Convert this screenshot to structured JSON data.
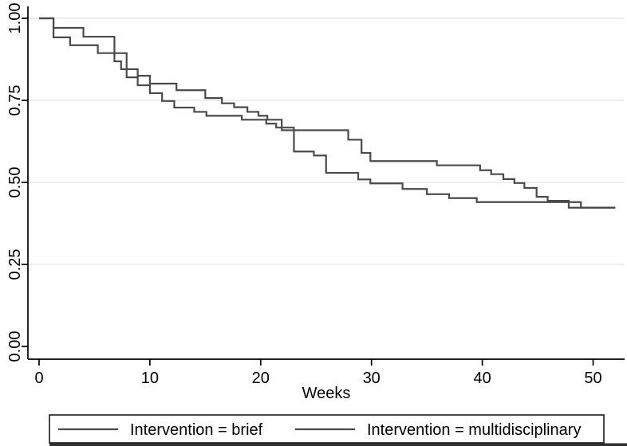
{
  "chart_data": {
    "type": "line",
    "subtype": "kaplan-meier-step-survival",
    "title": "",
    "xlabel": "Weeks",
    "ylabel": "",
    "xlim": [
      0,
      52
    ],
    "xticks": [
      0,
      10,
      20,
      30,
      40,
      50
    ],
    "ylim": [
      0.0,
      1.0
    ],
    "yticks": [
      "0.00",
      "0.25",
      "0.50",
      "0.75",
      "1.00"
    ],
    "ytick_values": [
      0.0,
      0.25,
      0.5,
      0.75,
      1.0
    ],
    "grid": "horizontal-light",
    "legend_position": "bottom",
    "series": [
      {
        "name": "Intervention = brief",
        "color": "#4a4a4a",
        "end_week": 52,
        "steps": [
          [
            0,
            1.0
          ],
          [
            1.3,
            0.942
          ],
          [
            2.8,
            0.918
          ],
          [
            5.3,
            0.894
          ],
          [
            6.8,
            0.869
          ],
          [
            7.4,
            0.845
          ],
          [
            7.9,
            0.82
          ],
          [
            8.9,
            0.796
          ],
          [
            10,
            0.772
          ],
          [
            11.1,
            0.748
          ],
          [
            12.2,
            0.728
          ],
          [
            14,
            0.715
          ],
          [
            15.1,
            0.703
          ],
          [
            18.3,
            0.691
          ],
          [
            20.5,
            0.679
          ],
          [
            21.4,
            0.667
          ],
          [
            23,
            0.594
          ],
          [
            24.8,
            0.582
          ],
          [
            25.9,
            0.529
          ],
          [
            28.8,
            0.509
          ],
          [
            29.9,
            0.497
          ],
          [
            32.8,
            0.48
          ],
          [
            35,
            0.464
          ],
          [
            37,
            0.452
          ],
          [
            39.5,
            0.44
          ],
          [
            48.9,
            0.423
          ]
        ]
      },
      {
        "name": "Intervention = multidisciplinary",
        "color": "#4a4a4a",
        "end_week": 52,
        "steps": [
          [
            0,
            1.0
          ],
          [
            1.3,
            0.971
          ],
          [
            4,
            0.944
          ],
          [
            6.8,
            0.894
          ],
          [
            7.9,
            0.845
          ],
          [
            8.9,
            0.825
          ],
          [
            10,
            0.801
          ],
          [
            12.4,
            0.781
          ],
          [
            15,
            0.757
          ],
          [
            16.5,
            0.741
          ],
          [
            17.6,
            0.729
          ],
          [
            18.8,
            0.715
          ],
          [
            19.8,
            0.703
          ],
          [
            20.6,
            0.691
          ],
          [
            21.9,
            0.659
          ],
          [
            27.9,
            0.63
          ],
          [
            29.1,
            0.59
          ],
          [
            29.9,
            0.565
          ],
          [
            35.9,
            0.552
          ],
          [
            39.8,
            0.537
          ],
          [
            40.8,
            0.525
          ],
          [
            41.9,
            0.51
          ],
          [
            42.9,
            0.498
          ],
          [
            43.8,
            0.483
          ],
          [
            44.9,
            0.456
          ],
          [
            45.9,
            0.444
          ],
          [
            47.8,
            0.423
          ]
        ]
      }
    ]
  },
  "legend": {
    "entries": [
      "Intervention = brief",
      "Intervention = multidisciplinary"
    ]
  },
  "colors": {
    "curve": "#4a4a4a",
    "axis": "#000000",
    "gridline": "#e8e8e8",
    "legend_border": "#1a1a1a",
    "background": "#ffffff",
    "bottom_strip": "#303030"
  }
}
